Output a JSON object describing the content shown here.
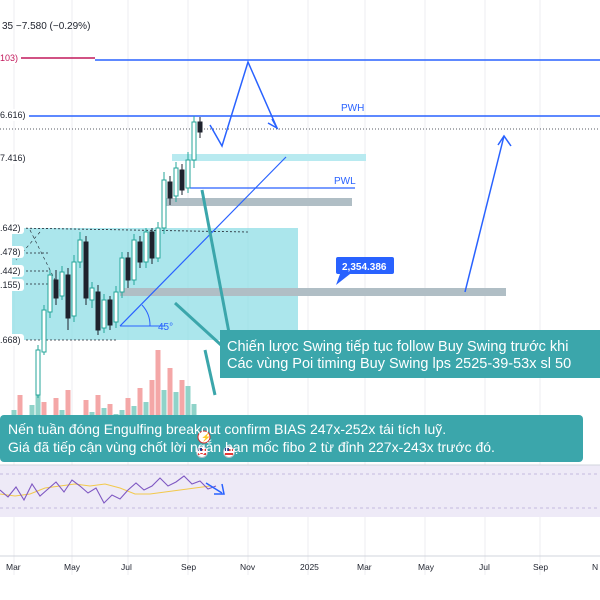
{
  "header": {
    "change_text": "35  −7.580 (−0.29%)"
  },
  "price_scale_labels": [
    {
      "name": "level-2673",
      "text": "103)",
      "color": "#c2185b"
    },
    {
      "name": "level-2556",
      "text": "6.616)",
      "color": "#1e222d"
    },
    {
      "name": "level-2517",
      "text": "7.416)",
      "color": "#1e222d"
    },
    {
      "name": "level-2442",
      "text": ".642)",
      "color": "#1e222d"
    },
    {
      "name": "level-2420",
      "text": ".478)",
      "color": "#1e222d"
    },
    {
      "name": "level-2402",
      "text": ".442)",
      "color": "#1e222d"
    },
    {
      "name": "level-2385",
      "text": ".155)",
      "color": "#1e222d"
    },
    {
      "name": "level-2327",
      "text": ".668)",
      "color": "#1e222d"
    }
  ],
  "annotations": {
    "pwh": "PWH",
    "pwl": "PWL",
    "price_tag": "2,354.386",
    "angle": "45°"
  },
  "comments": {
    "upper_line1": "Chiến lược Swing tiếp tục follow Buy Swing trước khi",
    "upper_line2": "Các vùng Poi timing Buy Swing lps 2525-39-53x sl 50",
    "lower_line1": "Nến tuần đóng Engulfing breakout confirm BIAS 247x-252x tái tích luỹ.",
    "lower_line2": "Giá đã tiếp cận vùng chốt lời ngắn hạn mốc fibo 2 từ đỉnh 227x-243x trước đó."
  },
  "x_axis": [
    "Mar",
    "May",
    "Jul",
    "Sep",
    "Nov",
    "2025",
    "Mar",
    "May",
    "Jul",
    "Sep",
    "N"
  ],
  "colors": {
    "up": "#26a69a",
    "down": "#1e222d",
    "line_blue": "#2962ff",
    "fib_magenta": "#c2185b",
    "cyan_box": "#8fdde6",
    "comment_teal": "#3ba6ab"
  },
  "icons": [
    "event-icon",
    "flag-us-icon"
  ]
}
